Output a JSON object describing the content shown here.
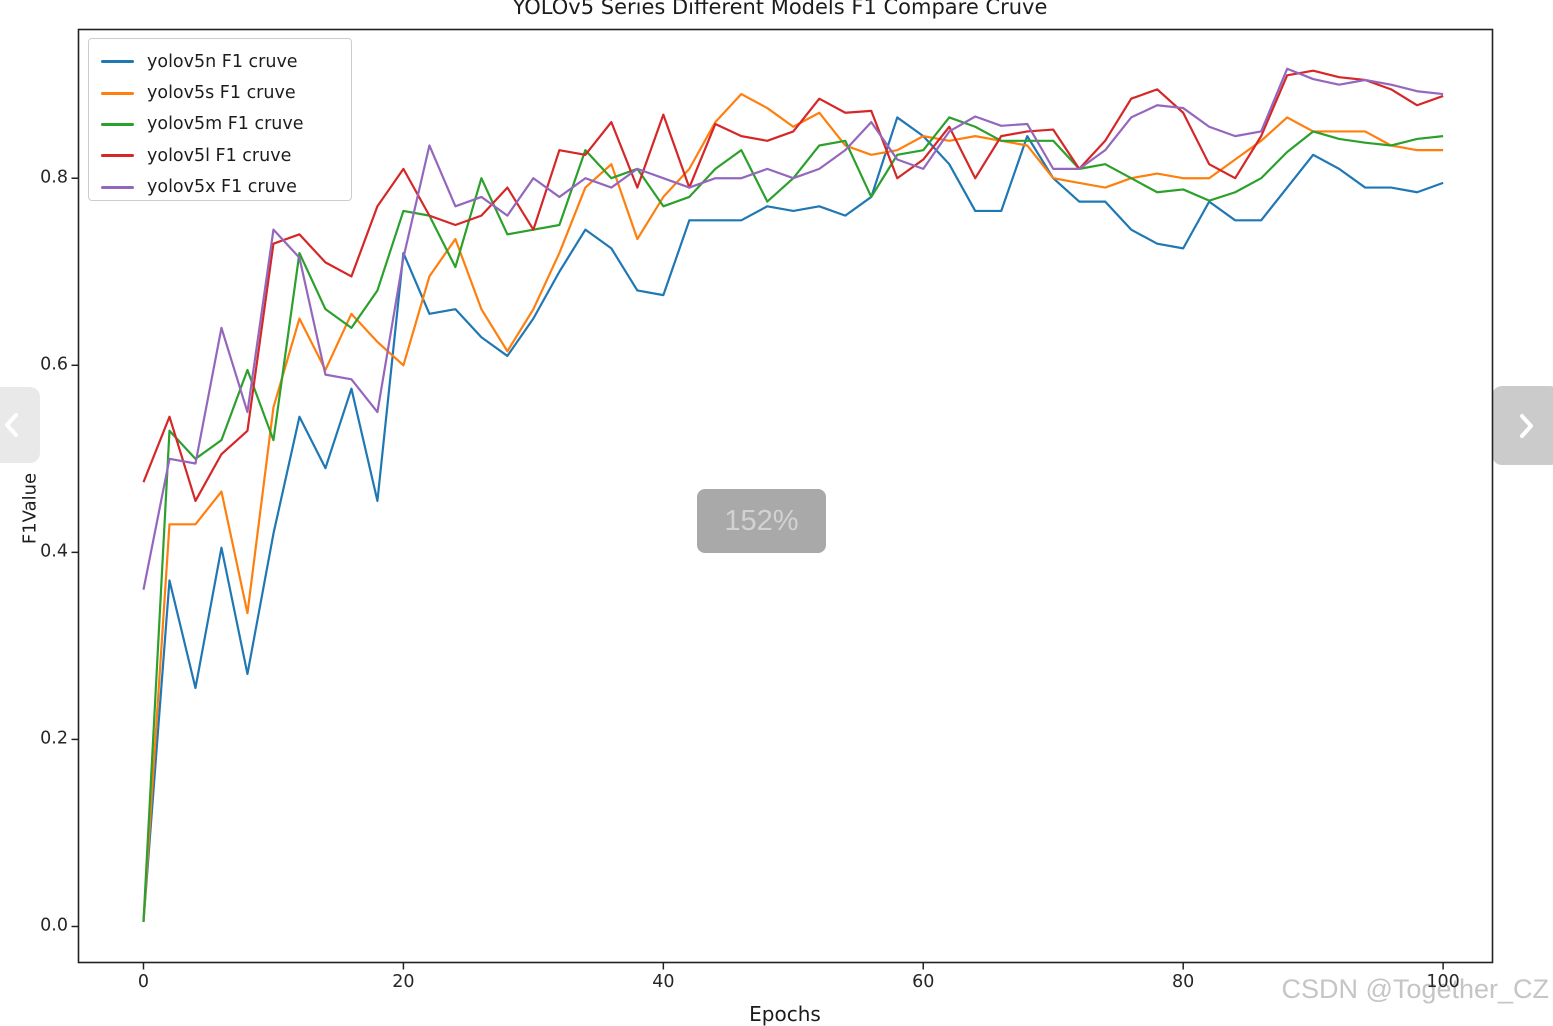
{
  "viewer": {
    "zoom_badge_label": "152%",
    "prev_icon": "chevron-left-icon",
    "next_icon": "chevron-right-icon",
    "watermark_text": "CSDN @Together_CZ",
    "colors": {
      "zoom_badge_bg": "#a9a9a9",
      "zoom_badge_text": "#d2d2d2",
      "watermark": "#c5c5c5",
      "prev_button_bg": "#e9e9e9",
      "next_button_bg": "#cbcbcb"
    }
  },
  "chart_data": {
    "type": "line",
    "title": "YOLOv5 Series Different Models F1 Compare Cruve",
    "xlabel": "Epochs",
    "ylabel": "F1Value",
    "grid": false,
    "legend_position": "upper left",
    "xlim": [
      -5,
      103.8
    ],
    "ylim": [
      -0.0385,
      0.959
    ],
    "xticks": [
      0,
      20,
      40,
      60,
      80,
      100
    ],
    "xtick_labels": [
      "0",
      "20",
      "40",
      "60",
      "80",
      "100"
    ],
    "yticks": [
      0.0,
      0.2,
      0.4,
      0.6,
      0.8
    ],
    "ytick_labels": [
      "0.0",
      "0.2",
      "0.4",
      "0.6",
      "0.8"
    ],
    "x_step": 2,
    "x": [
      0,
      2,
      4,
      6,
      8,
      10,
      12,
      14,
      16,
      18,
      20,
      22,
      24,
      26,
      28,
      30,
      32,
      34,
      36,
      38,
      40,
      42,
      44,
      46,
      48,
      50,
      52,
      54,
      56,
      58,
      60,
      62,
      64,
      66,
      68,
      70,
      72,
      74,
      76,
      78,
      80,
      82,
      84,
      86,
      88,
      90,
      92,
      94,
      96,
      98,
      100
    ],
    "series": [
      {
        "name": "yolov5n",
        "label": "yolov5n F1 cruve",
        "color": "#1f77b4",
        "values": [
          0.005,
          0.37,
          0.255,
          0.405,
          0.27,
          0.42,
          0.545,
          0.49,
          0.575,
          0.455,
          0.72,
          0.655,
          0.66,
          0.63,
          0.61,
          0.65,
          0.7,
          0.745,
          0.725,
          0.68,
          0.675,
          0.755,
          0.755,
          0.755,
          0.77,
          0.765,
          0.77,
          0.76,
          0.78,
          0.865,
          0.845,
          0.815,
          0.765,
          0.765,
          0.845,
          0.8,
          0.775,
          0.775,
          0.745,
          0.73,
          0.725,
          0.775,
          0.755,
          0.755,
          0.79,
          0.825,
          0.81,
          0.79,
          0.79,
          0.785,
          0.795
        ]
      },
      {
        "name": "yolov5s",
        "label": "yolov5s F1 cruve",
        "color": "#ff7f0e",
        "values": [
          0.005,
          0.43,
          0.43,
          0.465,
          0.335,
          0.555,
          0.65,
          0.595,
          0.655,
          0.625,
          0.6,
          0.695,
          0.735,
          0.66,
          0.615,
          0.66,
          0.72,
          0.79,
          0.815,
          0.735,
          0.78,
          0.81,
          0.86,
          0.89,
          0.875,
          0.855,
          0.87,
          0.835,
          0.825,
          0.83,
          0.845,
          0.84,
          0.845,
          0.84,
          0.835,
          0.8,
          0.795,
          0.79,
          0.8,
          0.805,
          0.8,
          0.8,
          0.82,
          0.84,
          0.865,
          0.85,
          0.85,
          0.85,
          0.835,
          0.83,
          0.83
        ]
      },
      {
        "name": "yolov5m",
        "label": "yolov5m F1 cruve",
        "color": "#2ca02c",
        "values": [
          0.005,
          0.53,
          0.5,
          0.52,
          0.595,
          0.52,
          0.72,
          0.66,
          0.64,
          0.68,
          0.765,
          0.76,
          0.705,
          0.8,
          0.74,
          0.745,
          0.75,
          0.83,
          0.8,
          0.81,
          0.77,
          0.78,
          0.81,
          0.83,
          0.775,
          0.8,
          0.835,
          0.84,
          0.78,
          0.825,
          0.83,
          0.865,
          0.855,
          0.84,
          0.84,
          0.84,
          0.81,
          0.815,
          0.8,
          0.785,
          0.788,
          0.776,
          0.785,
          0.8,
          0.828,
          0.85,
          0.842,
          0.838,
          0.835,
          0.842,
          0.845
        ]
      },
      {
        "name": "yolov5l",
        "label": "yolov5l F1 cruve",
        "color": "#d62728",
        "values": [
          0.475,
          0.545,
          0.455,
          0.505,
          0.53,
          0.73,
          0.74,
          0.71,
          0.695,
          0.77,
          0.81,
          0.76,
          0.75,
          0.76,
          0.79,
          0.745,
          0.83,
          0.825,
          0.86,
          0.79,
          0.868,
          0.79,
          0.858,
          0.845,
          0.84,
          0.85,
          0.885,
          0.87,
          0.872,
          0.8,
          0.82,
          0.855,
          0.8,
          0.845,
          0.85,
          0.852,
          0.81,
          0.84,
          0.885,
          0.895,
          0.87,
          0.815,
          0.8,
          0.845,
          0.91,
          0.915,
          0.908,
          0.905,
          0.895,
          0.878,
          0.888
        ]
      },
      {
        "name": "yolov5x",
        "label": "yolov5x F1 cruve",
        "color": "#9467bd",
        "values": [
          0.36,
          0.5,
          0.495,
          0.64,
          0.55,
          0.745,
          0.715,
          0.59,
          0.585,
          0.55,
          0.715,
          0.835,
          0.77,
          0.78,
          0.76,
          0.8,
          0.78,
          0.8,
          0.79,
          0.81,
          0.8,
          0.79,
          0.8,
          0.8,
          0.81,
          0.8,
          0.81,
          0.83,
          0.86,
          0.82,
          0.81,
          0.85,
          0.866,
          0.856,
          0.858,
          0.81,
          0.81,
          0.83,
          0.865,
          0.878,
          0.875,
          0.855,
          0.845,
          0.85,
          0.917,
          0.906,
          0.9,
          0.905,
          0.9,
          0.893,
          0.89
        ]
      }
    ]
  }
}
